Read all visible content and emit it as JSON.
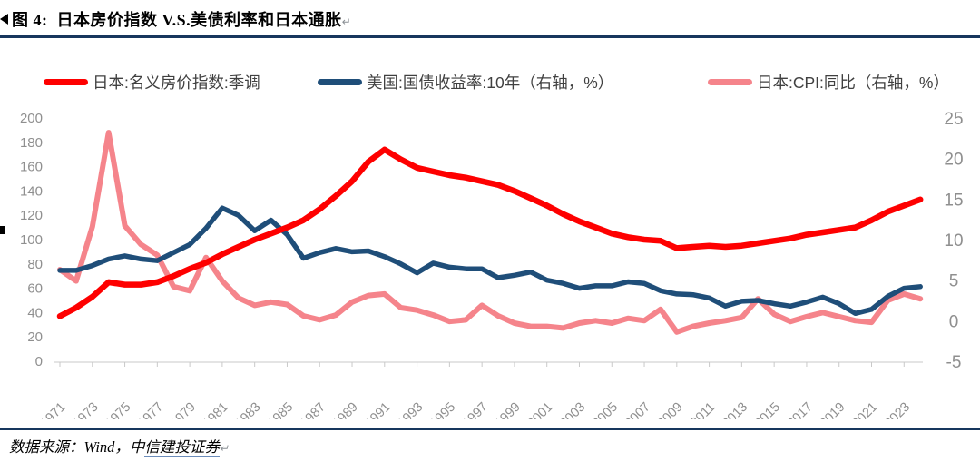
{
  "figure": {
    "title": "图 4:  日本房价指数 V.S.美债利率和日本通胀",
    "return_mark": "↵"
  },
  "legend": [
    {
      "label": "日本:名义房价指数:季调",
      "color": "#fe0000"
    },
    {
      "label": "美国:国债收益率:10年（右轴，%）",
      "color": "#1f4e79"
    },
    {
      "label": "日本:CPI:同比（右轴，%）",
      "color": "#f5848b"
    }
  ],
  "footer": {
    "prefix": "数据来源：Wind，中",
    "link": "信建投证券",
    "return_mark": "↵"
  },
  "colors": {
    "divider": "#17365d",
    "axis_text": "#8f8f8f",
    "axis_line": "#c9c9c9",
    "legend_text": "#404040"
  },
  "chart_data": {
    "type": "line",
    "title": "日本房价指数 V.S.美债利率和日本通胀",
    "x": [
      1971,
      1972,
      1973,
      1974,
      1975,
      1976,
      1977,
      1978,
      1979,
      1980,
      1981,
      1982,
      1983,
      1984,
      1985,
      1986,
      1987,
      1988,
      1989,
      1990,
      1991,
      1992,
      1993,
      1994,
      1995,
      1996,
      1997,
      1998,
      1999,
      2000,
      2001,
      2002,
      2003,
      2004,
      2005,
      2006,
      2007,
      2008,
      2009,
      2010,
      2011,
      2012,
      2013,
      2014,
      2015,
      2016,
      2017,
      2018,
      2019,
      2020,
      2021,
      2022,
      2023,
      2024
    ],
    "x_tick_labels": [
      "1971",
      "1973",
      "1975",
      "1977",
      "1979",
      "1981",
      "1983",
      "1985",
      "1987",
      "1989",
      "1991",
      "1993",
      "1995",
      "1997",
      "1999",
      "2001",
      "2003",
      "2005",
      "2007",
      "2009",
      "2011",
      "2013",
      "2015",
      "2017",
      "2019",
      "2021",
      "2023"
    ],
    "left_axis": {
      "min": 0,
      "max": 200,
      "ticks": [
        0,
        20,
        40,
        60,
        80,
        100,
        120,
        140,
        160,
        180,
        200
      ]
    },
    "right_axis": {
      "min": -5,
      "max": 25,
      "ticks": [
        -5,
        0,
        5,
        10,
        15,
        20,
        25
      ]
    },
    "grid": false,
    "legend_position": "top",
    "series": [
      {
        "name": "日本:名义房价指数:季调",
        "axis": "left",
        "color": "#fe0000",
        "values": [
          37,
          44,
          53,
          65,
          63,
          63,
          65,
          70,
          76,
          81,
          88,
          94,
          100,
          105,
          110,
          116,
          125,
          136,
          148,
          164,
          174,
          166,
          159,
          156,
          153,
          151,
          148,
          145,
          140,
          134,
          128,
          121,
          115,
          110,
          105,
          102,
          100,
          99,
          93,
          94,
          95,
          94,
          95,
          97,
          99,
          101,
          104,
          106,
          108,
          110,
          116,
          123,
          128,
          133
        ]
      },
      {
        "name": "美国:国债收益率:10年（右轴，%）",
        "axis": "right",
        "color": "#1f4e79",
        "values": [
          6.2,
          6.2,
          6.8,
          7.6,
          8.0,
          7.6,
          7.4,
          8.4,
          9.4,
          11.4,
          13.9,
          13.0,
          11.1,
          12.4,
          10.6,
          7.7,
          8.4,
          8.9,
          8.5,
          8.6,
          7.9,
          7.0,
          5.9,
          7.1,
          6.6,
          6.4,
          6.4,
          5.3,
          5.6,
          6.0,
          5.0,
          4.6,
          4.0,
          4.3,
          4.3,
          4.8,
          4.6,
          3.7,
          3.3,
          3.2,
          2.8,
          1.8,
          2.4,
          2.5,
          2.1,
          1.8,
          2.3,
          2.9,
          2.1,
          0.9,
          1.4,
          3.0,
          4.0,
          4.2
        ]
      },
      {
        "name": "日本:CPI:同比（右轴，%）",
        "axis": "right",
        "color": "#f5848b",
        "values": [
          6.3,
          4.9,
          11.6,
          23.2,
          11.7,
          9.4,
          8.1,
          4.2,
          3.7,
          7.8,
          4.9,
          2.8,
          1.9,
          2.3,
          2.0,
          0.6,
          0.1,
          0.7,
          2.3,
          3.1,
          3.3,
          1.6,
          1.3,
          0.7,
          -0.1,
          0.1,
          1.9,
          0.6,
          -0.3,
          -0.7,
          -0.7,
          -0.9,
          -0.3,
          0.0,
          -0.3,
          0.3,
          0.0,
          1.4,
          -1.4,
          -0.7,
          -0.3,
          0.0,
          0.4,
          2.7,
          0.8,
          -0.1,
          0.5,
          1.0,
          0.5,
          0.0,
          -0.2,
          2.5,
          3.3,
          2.7
        ]
      }
    ]
  }
}
